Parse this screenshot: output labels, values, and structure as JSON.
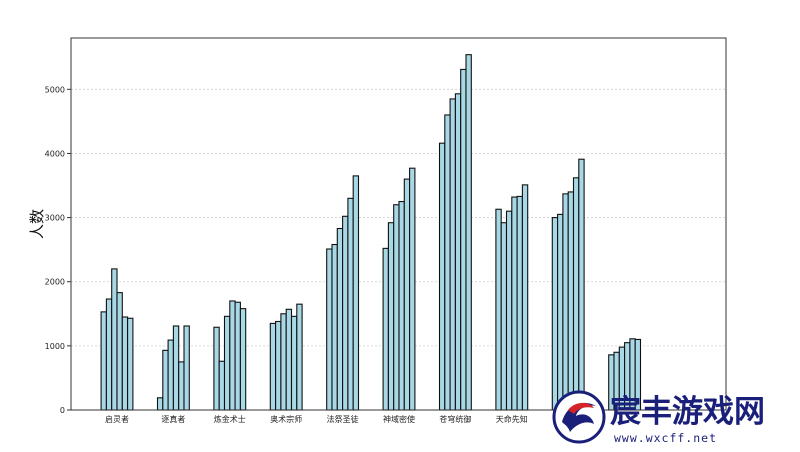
{
  "chart_data": {
    "type": "bar",
    "ylabel": "人数",
    "ylim": [
      0,
      5800
    ],
    "yticks": [
      0,
      1000,
      2000,
      3000,
      4000,
      5000
    ],
    "grid": true,
    "categories": [
      "启灵者",
      "逐真者",
      "炼金术士",
      "奥术宗师",
      "法祭圣徒",
      "神域密使",
      "苍穹统御",
      "天命先知",
      "",
      ""
    ],
    "groups": [
      [
        1530,
        1730,
        2200,
        1830,
        1450,
        1430
      ],
      [
        190,
        930,
        1090,
        1310,
        750,
        1310
      ],
      [
        1290,
        760,
        1460,
        1700,
        1680,
        1580
      ],
      [
        1350,
        1380,
        1500,
        1570,
        1460,
        1650
      ],
      [
        2510,
        2580,
        2830,
        3020,
        3300,
        3650
      ],
      [
        2520,
        2920,
        3200,
        3250,
        3600,
        3770
      ],
      [
        4160,
        4600,
        4850,
        4930,
        5310,
        5540
      ],
      [
        3130,
        2920,
        3100,
        3320,
        3330,
        3510
      ],
      [
        3000,
        3050,
        3370,
        3400,
        3620,
        3910
      ],
      [
        860,
        900,
        980,
        1050,
        1110,
        1100
      ]
    ]
  },
  "watermark": {
    "brand": "宸丰游戏网",
    "url": "www.wxcff.net"
  }
}
